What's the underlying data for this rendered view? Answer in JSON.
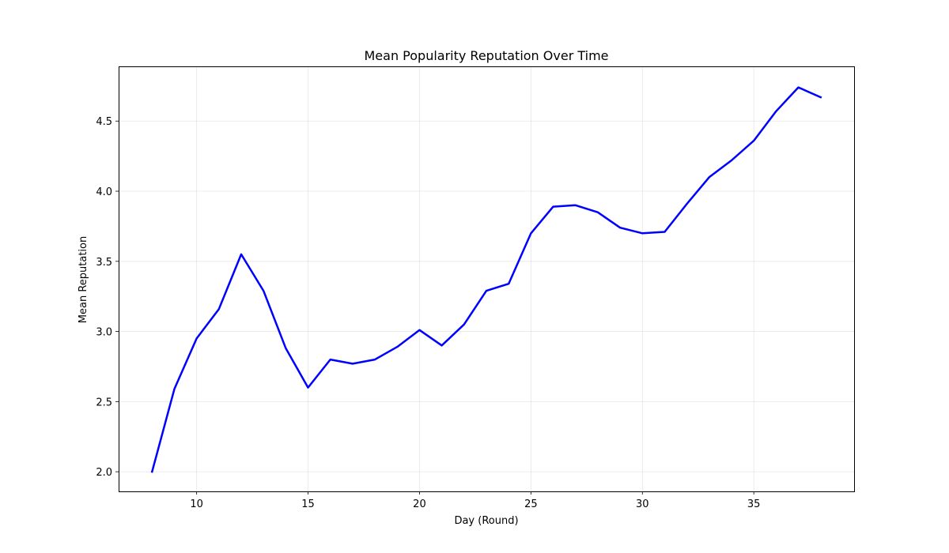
{
  "chart_data": {
    "type": "line",
    "title": "Mean Popularity Reputation Over Time",
    "xlabel": "Day (Round)",
    "ylabel": "Mean Reputation",
    "xlim": [
      6.5,
      39.5
    ],
    "ylim": [
      1.86,
      4.89
    ],
    "xticks": [
      10,
      15,
      20,
      25,
      30,
      35
    ],
    "yticks": [
      2.0,
      2.5,
      3.0,
      3.5,
      4.0,
      4.5
    ],
    "ytick_format": "0.0",
    "grid": true,
    "series": [
      {
        "color": "#0000ff",
        "x": [
          8,
          9,
          10,
          11,
          12,
          13,
          14,
          15,
          16,
          17,
          18,
          19,
          20,
          21,
          22,
          23,
          24,
          25,
          26,
          27,
          28,
          29,
          30,
          31,
          32,
          33,
          34,
          35,
          36,
          37,
          38
        ],
        "y": [
          2.0,
          2.59,
          2.95,
          3.16,
          3.55,
          3.29,
          2.88,
          2.6,
          2.8,
          2.77,
          2.8,
          2.89,
          3.01,
          2.9,
          3.05,
          3.29,
          3.34,
          3.7,
          3.89,
          3.9,
          3.85,
          3.74,
          3.7,
          3.71,
          3.91,
          4.1,
          4.22,
          4.36,
          4.57,
          4.74,
          4.67
        ]
      }
    ]
  }
}
